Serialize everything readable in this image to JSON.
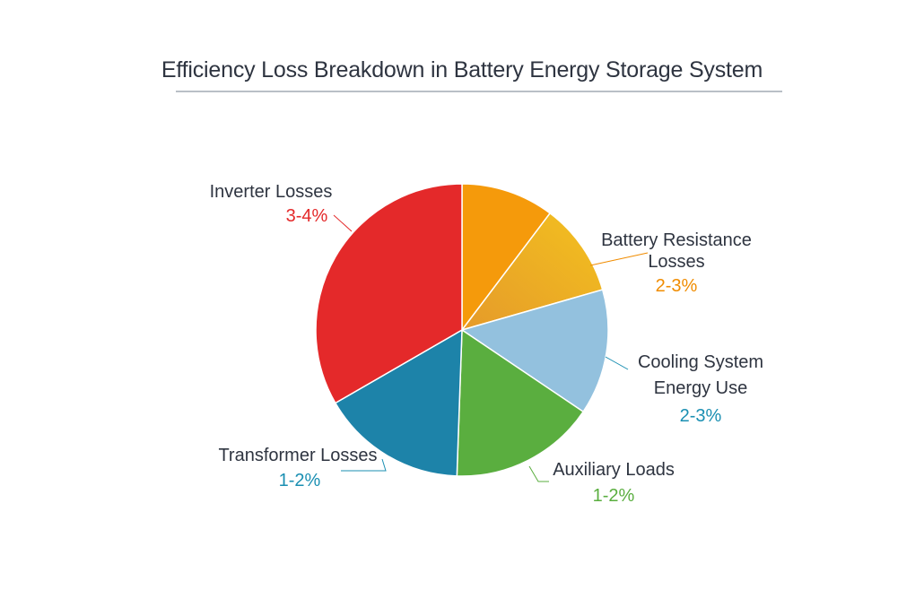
{
  "chart_data": {
    "type": "pie",
    "title": "Efficiency Loss Breakdown in Battery Energy Storage System",
    "slices": [
      {
        "label": "Inverter Losses",
        "value_text": "3-4%",
        "share": 33.0,
        "color": "#e4292a"
      },
      {
        "label": "Battery Resistance Losses",
        "value_text": "2-3%",
        "share": 21.0,
        "color": "#f59a0b",
        "color2": "#f3c11f"
      },
      {
        "label": "Cooling System Energy Use",
        "value_text": "2-3%",
        "share": 13.5,
        "color": "#93c1de"
      },
      {
        "label": "Auxiliary Loads",
        "value_text": "1-2%",
        "share": 15.0,
        "color": "#5aae3f"
      },
      {
        "label": "Transformer Losses",
        "value_text": "1-2%",
        "share": 17.5,
        "color": "#1d83a9"
      }
    ],
    "label_colors": {
      "Inverter Losses": "#e4292a",
      "Battery Resistance Losses": "#f08c00",
      "Cooling System Energy Use": "#1a8fb2",
      "Auxiliary Loads": "#5aae3f",
      "Transformer Losses": "#1a8fb2"
    }
  }
}
